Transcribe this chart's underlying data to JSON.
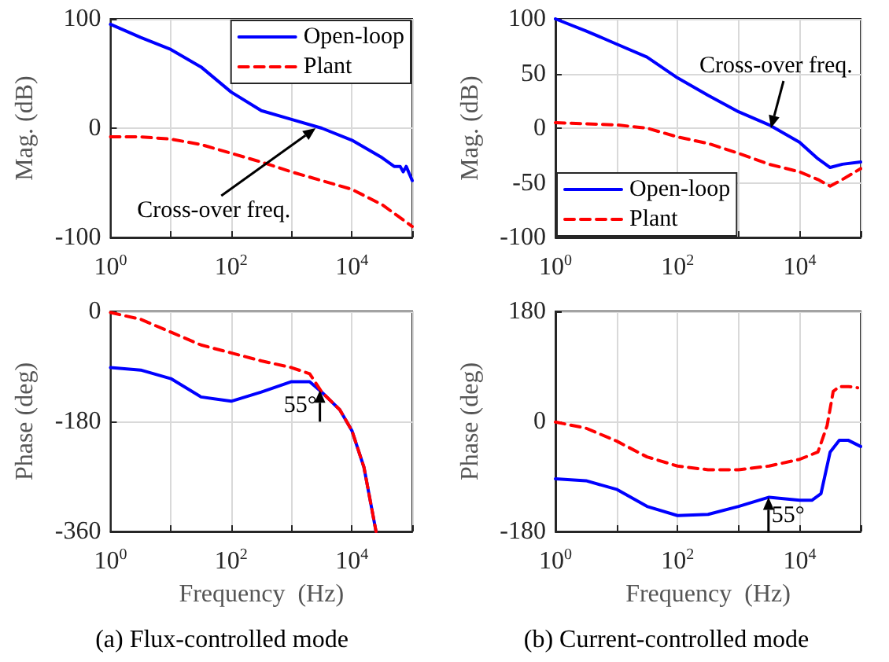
{
  "chart_data": [
    {
      "type": "line",
      "ylabel": "Mag. (dB)",
      "xlim": [
        1,
        100000
      ],
      "xticks": [
        {
          "value": 1,
          "label": "10$^{0}$"
        },
        {
          "value": 10,
          "label": null
        },
        {
          "value": 100,
          "label": "10$^{2}$"
        },
        {
          "value": 1000,
          "label": null
        },
        {
          "value": 10000,
          "label": "10$^{4}$"
        },
        {
          "value": 100000,
          "label": null
        }
      ],
      "ylim": [
        -100,
        100
      ],
      "yticks": [
        -100,
        0,
        100
      ],
      "log": "x",
      "grid": true,
      "legend": "top right",
      "marker": "none",
      "annotations": [
        {
          "text": "Cross-over freq.",
          "x": 2512,
          "y": 0
        }
      ],
      "series": [
        {
          "name": "Open-loop",
          "color": "#0000ff",
          "line_style": "solid",
          "x": [
            1,
            3.162,
            10,
            31.62,
            100,
            316.2,
            1000,
            3162,
            10000,
            31623,
            50119,
            63096,
            70795,
            79433,
            100000
          ],
          "values": [
            95,
            83,
            72,
            56,
            33,
            16,
            8,
            0,
            -11,
            -27,
            -35,
            -35,
            -40,
            -35,
            -48
          ]
        },
        {
          "name": "Plant",
          "color": "#ff0000",
          "line_style": "dashed",
          "x": [
            1,
            3.162,
            10,
            31.62,
            100,
            316.2,
            1000,
            3162,
            10000,
            31623,
            63096,
            100000
          ],
          "values": [
            -8,
            -8,
            -10,
            -15,
            -23,
            -31,
            -40,
            -48,
            -56,
            -70,
            -82,
            -90
          ]
        }
      ]
    },
    {
      "type": "line",
      "ylabel": "Mag. (dB)",
      "xlim": [
        1,
        100000
      ],
      "xticks": [
        {
          "value": 1,
          "label": "10$^{0}$"
        },
        {
          "value": 10,
          "label": null
        },
        {
          "value": 100,
          "label": "10$^{2}$"
        },
        {
          "value": 1000,
          "label": null
        },
        {
          "value": 10000,
          "label": "10$^{4}$"
        },
        {
          "value": 100000,
          "label": null
        }
      ],
      "ylim": [
        -100,
        100
      ],
      "yticks": [
        -100,
        -50,
        0,
        50,
        100
      ],
      "log": "x",
      "grid": true,
      "legend": "bottom left",
      "marker": "none",
      "annotations": [
        {
          "text": "Cross-over freq.",
          "x": 3388,
          "y": 0
        }
      ],
      "series": [
        {
          "name": "Open-loop",
          "color": "#0000ff",
          "line_style": "solid",
          "x": [
            1,
            3.162,
            10,
            31.62,
            100,
            316.2,
            1000,
            3162,
            10000,
            19953,
            31623,
            50119,
            100000
          ],
          "values": [
            100,
            89,
            77,
            65,
            46,
            30,
            15,
            3,
            -13,
            -28,
            -36,
            -33,
            -31
          ]
        },
        {
          "name": "Plant",
          "color": "#ff0000",
          "line_style": "dashed",
          "x": [
            1,
            10,
            31.62,
            100,
            316.2,
            1000,
            3162,
            10000,
            19953,
            31623,
            50119,
            100000
          ],
          "values": [
            5,
            3,
            0,
            -8,
            -14,
            -23,
            -33,
            -40,
            -47,
            -53,
            -47,
            -37
          ]
        }
      ]
    },
    {
      "type": "line",
      "xlabel": "Frequency  (Hz)",
      "ylabel": "Phase (deg)",
      "xlim": [
        1,
        100000
      ],
      "xticks": [
        {
          "value": 1,
          "label": "10$^{0}$"
        },
        {
          "value": 10,
          "label": null
        },
        {
          "value": 100,
          "label": "10$^{2}$"
        },
        {
          "value": 1000,
          "label": null
        },
        {
          "value": 10000,
          "label": "10$^{4}$"
        },
        {
          "value": 100000,
          "label": null
        }
      ],
      "ylim": [
        -360,
        0
      ],
      "yticks": [
        -360,
        -180,
        0
      ],
      "log": "x",
      "grid": true,
      "marker": "none",
      "annotations": [
        {
          "text": "55°",
          "x": 2951,
          "y": -129
        },
        "(a) Flux-controlled mode"
      ],
      "series": [
        {
          "color": "#0000ff",
          "line_style": "solid",
          "x": [
            1,
            3.162,
            10,
            31.62,
            100,
            316.2,
            1000,
            1995,
            3162,
            6310,
            10000,
            15849,
            25119
          ],
          "values": [
            -92,
            -96,
            -110,
            -140,
            -147,
            -132,
            -115,
            -115,
            -132,
            -161,
            -195,
            -255,
            -360
          ]
        },
        {
          "color": "#ff0000",
          "line_style": "dashed",
          "x": [
            1,
            3.162,
            10,
            31.62,
            100,
            316.2,
            1000,
            1995,
            3162,
            6310,
            10000,
            15849,
            25119
          ],
          "values": [
            -2,
            -13,
            -34,
            -55,
            -68,
            -81,
            -92,
            -102,
            -132,
            -161,
            -195,
            -255,
            -360
          ]
        }
      ]
    },
    {
      "type": "line",
      "xlabel": "Frequency  (Hz)",
      "ylabel": "Phase (deg)",
      "xlim": [
        1,
        100000
      ],
      "xticks": [
        {
          "value": 1,
          "label": "10$^{0}$"
        },
        {
          "value": 10,
          "label": null
        },
        {
          "value": 100,
          "label": "10$^{2}$"
        },
        {
          "value": 1000,
          "label": null
        },
        {
          "value": 10000,
          "label": "10$^{4}$"
        },
        {
          "value": 100000,
          "label": null
        }
      ],
      "ylim": [
        -180,
        180
      ],
      "yticks": [
        -180,
        0,
        180
      ],
      "log": "x",
      "grid": true,
      "marker": "none",
      "annotations": [
        {
          "text": "55°",
          "x": 3090,
          "y": -124
        },
        "(b) Current-controlled mode"
      ],
      "series": [
        {
          "color": "#0000ff",
          "line_style": "solid",
          "x": [
            1,
            3.162,
            10,
            31.62,
            100,
            316.2,
            1000,
            3162,
            10000,
            15849,
            22387,
            31623,
            44668,
            63096,
            100000
          ],
          "values": [
            -94,
            -97,
            -111,
            -139,
            -154,
            -152,
            -139,
            -124,
            -129,
            -129,
            -118,
            -50,
            -31,
            -31,
            -41
          ]
        },
        {
          "color": "#ff0000",
          "line_style": "dashed",
          "x": [
            1,
            3.162,
            10,
            31.62,
            100,
            316.2,
            1000,
            3162,
            10000,
            19953,
            28184,
            35481,
            44668,
            63096,
            89125
          ],
          "values": [
            -1,
            -11,
            -32,
            -58,
            -73,
            -79,
            -79,
            -73,
            -62,
            -50,
            -7,
            49,
            57,
            57,
            55
          ]
        }
      ]
    }
  ]
}
